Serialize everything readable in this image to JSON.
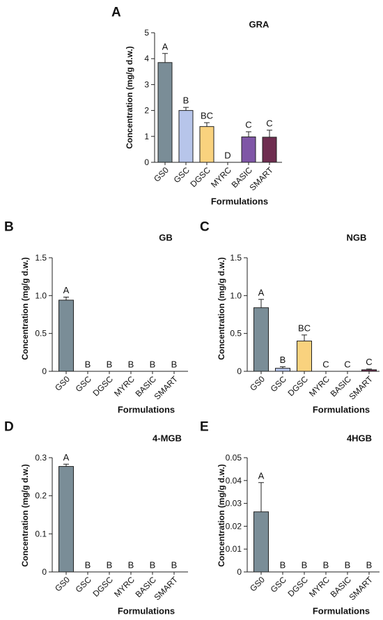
{
  "chart_data": [
    {
      "panel": "A",
      "type": "bar",
      "title": "GRA",
      "xlabel": "Formulations",
      "ylabel": "Concentration (mg/g d.w.)",
      "ylim": [
        0,
        5
      ],
      "yticks": [
        "0",
        "1",
        "2",
        "3",
        "4",
        "5"
      ],
      "categories": [
        "GS0",
        "GSC",
        "DGSC",
        "MYRC",
        "BASIC",
        "SMART"
      ],
      "values": [
        3.85,
        2.0,
        1.38,
        0,
        0.98,
        0.97
      ],
      "errors": [
        0.35,
        0.12,
        0.15,
        0,
        0.2,
        0.27
      ],
      "letters": [
        "A",
        "B",
        "BC",
        "D",
        "C",
        "C"
      ]
    },
    {
      "panel": "B",
      "type": "bar",
      "title": "GB",
      "xlabel": "Formulations",
      "ylabel": "Concentration (mg/g d.w.)",
      "ylim": [
        0,
        1.5
      ],
      "yticks": [
        "0",
        "0.5",
        "1.0",
        "1.5"
      ],
      "categories": [
        "GS0",
        "GSC",
        "DGSC",
        "MYRC",
        "BASIC",
        "SMART"
      ],
      "values": [
        0.94,
        0,
        0,
        0,
        0,
        0
      ],
      "errors": [
        0.04,
        0,
        0,
        0,
        0,
        0
      ],
      "letters": [
        "A",
        "B",
        "B",
        "B",
        "B",
        "B"
      ]
    },
    {
      "panel": "C",
      "type": "bar",
      "title": "NGB",
      "xlabel": "Formulations",
      "ylabel": "Concentration (mg/g d.w.)",
      "ylim": [
        0,
        1.5
      ],
      "yticks": [
        "0",
        "0.5",
        "1.0",
        "1.5"
      ],
      "categories": [
        "GS0",
        "GSC",
        "DGSC",
        "MYRC",
        "BASIC",
        "SMART"
      ],
      "values": [
        0.84,
        0.04,
        0.4,
        0,
        0,
        0.02
      ],
      "errors": [
        0.11,
        0.02,
        0.08,
        0,
        0,
        0.01
      ],
      "letters": [
        "A",
        "B",
        "BC",
        "C",
        "C",
        "C"
      ]
    },
    {
      "panel": "D",
      "type": "bar",
      "title": "4-MGB",
      "xlabel": "Formulations",
      "ylabel": "Concentration (mg/g d.w.)",
      "ylim": [
        0,
        0.3
      ],
      "yticks": [
        "0",
        "0.1",
        "0.2",
        "0.3"
      ],
      "categories": [
        "GS0",
        "GSC",
        "DGSC",
        "MYRC",
        "BASIC",
        "SMART"
      ],
      "values": [
        0.277,
        0,
        0,
        0,
        0,
        0
      ],
      "errors": [
        0.006,
        0,
        0,
        0,
        0,
        0
      ],
      "letters": [
        "A",
        "B",
        "B",
        "B",
        "B",
        "B"
      ]
    },
    {
      "panel": "E",
      "type": "bar",
      "title": "4HGB",
      "xlabel": "Formulations",
      "ylabel": "Concentration (mg/g d.w.)",
      "ylim": [
        0,
        0.05
      ],
      "yticks": [
        "0",
        "0.01",
        "0.02",
        "0.03",
        "0.04",
        "0.05"
      ],
      "categories": [
        "GS0",
        "GSC",
        "DGSC",
        "MYRC",
        "BASIC",
        "SMART"
      ],
      "values": [
        0.0263,
        0,
        0,
        0,
        0,
        0
      ],
      "errors": [
        0.0128,
        0,
        0,
        0,
        0,
        0
      ],
      "letters": [
        "A",
        "B",
        "B",
        "B",
        "B",
        "B"
      ]
    }
  ],
  "colors": {
    "GS0": "#7a8d97",
    "GSC": "#b7c5ea",
    "DGSC": "#f9d27e",
    "MYRC": "#dcdcdc",
    "BASIC": "#7f56a6",
    "SMART": "#6e2d4f",
    "axis": "#222222",
    "text": "#111111"
  }
}
